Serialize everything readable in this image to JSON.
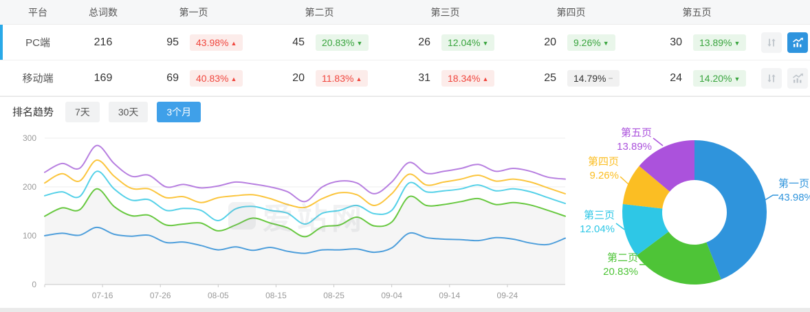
{
  "colors": {
    "accent_blue": "#2e94de",
    "tab_active_blue": "#3fa0e9",
    "row_indicator_blue": "#29a9e8",
    "badge_up_red": "#f0463d",
    "badge_down_green": "#38a43d",
    "badge_flat_gray": "#999999",
    "line_page1": "#4d9edb",
    "line_page2": "#67c83f",
    "line_page3": "#55d1e8",
    "line_page4": "#fbc53d",
    "line_page5": "#b77fe0",
    "pie_page1": "#2f94dc",
    "pie_page2": "#4ec437",
    "pie_page3": "#2ec7e6",
    "pie_page4": "#fbbe23",
    "pie_page5": "#ab52dc"
  },
  "table": {
    "headers": {
      "platform": "平台",
      "total": "总词数",
      "page1": "第一页",
      "page2": "第二页",
      "page3": "第三页",
      "page4": "第四页",
      "page5": "第五页"
    },
    "rows": [
      {
        "platform": "PC端",
        "total": "216",
        "selected": true,
        "chart_active": true,
        "pages": [
          {
            "count": "95",
            "pct": "43.98%",
            "trend": "up"
          },
          {
            "count": "45",
            "pct": "20.83%",
            "trend": "down"
          },
          {
            "count": "26",
            "pct": "12.04%",
            "trend": "down"
          },
          {
            "count": "20",
            "pct": "9.26%",
            "trend": "down"
          },
          {
            "count": "30",
            "pct": "13.89%",
            "trend": "down"
          }
        ]
      },
      {
        "platform": "移动端",
        "total": "169",
        "selected": false,
        "chart_active": false,
        "pages": [
          {
            "count": "69",
            "pct": "40.83%",
            "trend": "up"
          },
          {
            "count": "20",
            "pct": "11.83%",
            "trend": "up"
          },
          {
            "count": "31",
            "pct": "18.34%",
            "trend": "up"
          },
          {
            "count": "25",
            "pct": "14.79%",
            "trend": "flat"
          },
          {
            "count": "24",
            "pct": "14.20%",
            "trend": "down"
          }
        ]
      }
    ]
  },
  "trend": {
    "title": "排名趋势",
    "tabs": [
      {
        "label": "7天",
        "active": false
      },
      {
        "label": "30天",
        "active": false
      },
      {
        "label": "3个月",
        "active": true
      }
    ]
  },
  "watermark": "爱站网",
  "chart_data": [
    {
      "type": "line",
      "title": "排名趋势（3个月）",
      "note": "cumulative ranking counts per page depth; top line equals total words 216",
      "x": [
        "07-06",
        "07-09",
        "07-12",
        "07-15",
        "07-18",
        "07-21",
        "07-24",
        "07-27",
        "07-30",
        "08-02",
        "08-05",
        "08-08",
        "08-11",
        "08-14",
        "08-17",
        "08-20",
        "08-23",
        "08-26",
        "08-29",
        "09-01",
        "09-04",
        "09-07",
        "09-10",
        "09-13",
        "09-16",
        "09-19",
        "09-22",
        "09-25",
        "09-28",
        "10-01",
        "10-04"
      ],
      "series": [
        {
          "name": "第一页",
          "color": "#4d9edb",
          "values": [
            100,
            105,
            101,
            117,
            103,
            99,
            101,
            86,
            87,
            80,
            71,
            77,
            70,
            76,
            68,
            64,
            71,
            71,
            73,
            66,
            75,
            105,
            96,
            93,
            92,
            90,
            96,
            93,
            85,
            82,
            95
          ]
        },
        {
          "name": "第二页",
          "color": "#67c83f",
          "values": [
            140,
            157,
            153,
            196,
            160,
            141,
            142,
            122,
            124,
            126,
            110,
            122,
            136,
            126,
            116,
            98,
            118,
            122,
            138,
            120,
            128,
            180,
            162,
            164,
            170,
            176,
            164,
            168,
            163,
            152,
            140
          ]
        },
        {
          "name": "第三页",
          "color": "#55d1e8",
          "values": [
            182,
            190,
            180,
            232,
            196,
            173,
            174,
            152,
            156,
            152,
            131,
            155,
            160,
            152,
            146,
            124,
            146,
            152,
            162,
            145,
            152,
            208,
            190,
            192,
            196,
            204,
            192,
            196,
            190,
            178,
            166
          ]
        },
        {
          "name": "第四页",
          "color": "#fbc53d",
          "values": [
            208,
            227,
            212,
            255,
            222,
            197,
            196,
            178,
            180,
            168,
            178,
            182,
            184,
            176,
            164,
            158,
            176,
            188,
            184,
            162,
            186,
            226,
            204,
            210,
            216,
            224,
            212,
            216,
            210,
            198,
            186
          ]
        },
        {
          "name": "第五页",
          "color": "#b77fe0",
          "values": [
            230,
            248,
            238,
            285,
            248,
            222,
            224,
            200,
            205,
            198,
            202,
            210,
            206,
            200,
            190,
            170,
            200,
            212,
            208,
            186,
            210,
            250,
            228,
            232,
            238,
            246,
            232,
            238,
            232,
            220,
            216
          ]
        }
      ],
      "ylim": [
        0,
        300
      ],
      "yticks": [
        0,
        100,
        200,
        300
      ],
      "xticks": [
        "07-16",
        "07-26",
        "08-05",
        "08-15",
        "08-25",
        "09-04",
        "09-14",
        "09-24"
      ],
      "grid": "horizontal",
      "area_fill_under_series": "第二页",
      "legend": "none"
    },
    {
      "type": "pie",
      "donut": true,
      "slices": [
        {
          "label": "第一页",
          "value": 43.98,
          "color": "#2f94dc"
        },
        {
          "label": "第二页",
          "value": 20.83,
          "color": "#4ec437"
        },
        {
          "label": "第三页",
          "value": 12.04,
          "color": "#2ec7e6"
        },
        {
          "label": "第四页",
          "value": 9.26,
          "color": "#fbbe23"
        },
        {
          "label": "第五页",
          "value": 13.89,
          "color": "#ab52dc"
        }
      ],
      "legend": "callout-labels"
    }
  ],
  "icons": {
    "sort": "sort-arrows-icon",
    "chart": "trend-chart-icon"
  }
}
